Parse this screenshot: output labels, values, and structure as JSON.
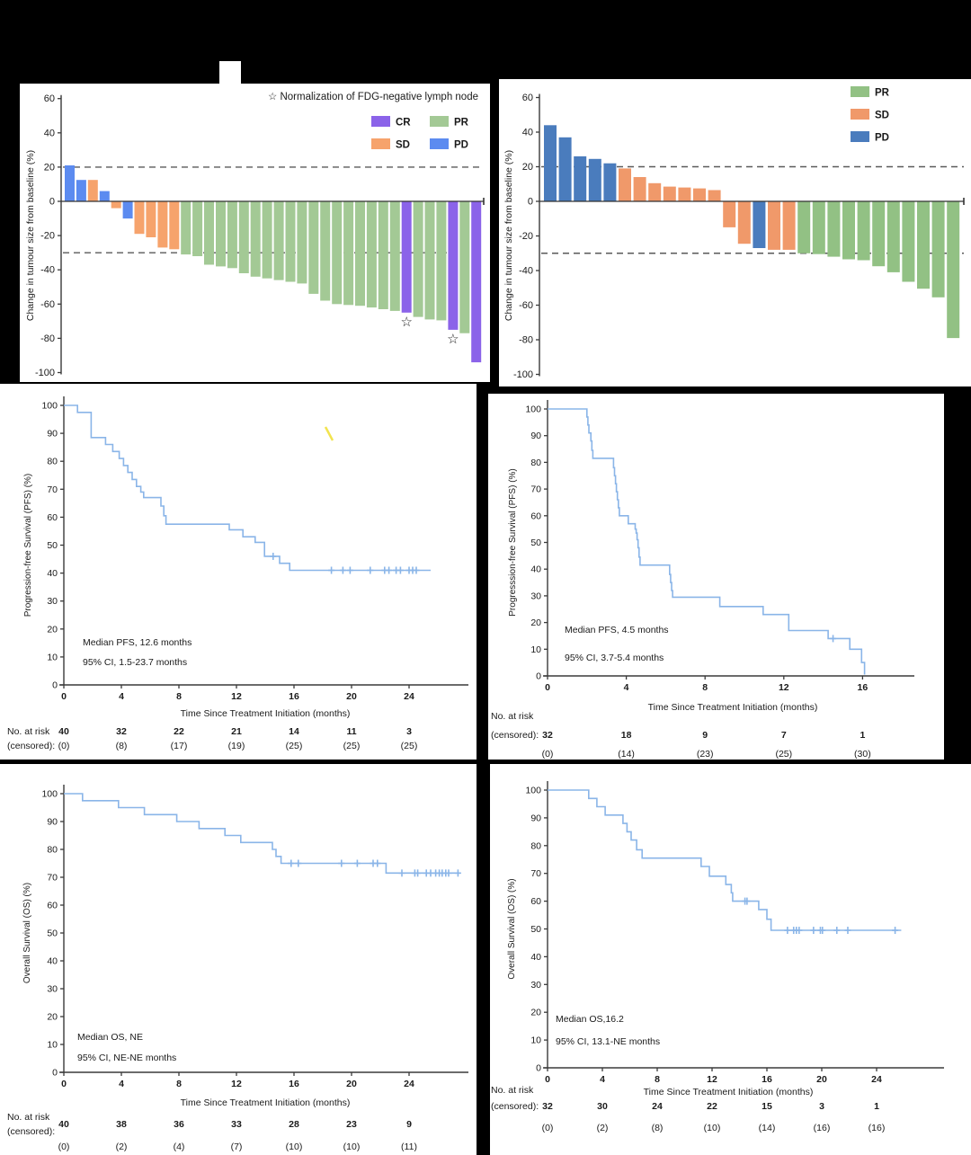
{
  "figure": {
    "risk_label_line1": "No. at risk",
    "risk_label_line2": "(censored):",
    "x_axis_label": "Time Since Treatment Initiation (months)",
    "km_line_color": "#8ab5e8",
    "axis_color": "#3a3a3a",
    "ref_line_color": "#5a5a5a",
    "star_symbol": "☆"
  },
  "chart_data": [
    {
      "id": "waterfall_arm1",
      "type": "bar",
      "ylabel": "Change in tumour size from baseline (%)",
      "yticks": [
        60,
        40,
        20,
        0,
        -20,
        -40,
        -60,
        -80,
        -100
      ],
      "ylim": [
        -100,
        60
      ],
      "ref_lines": [
        20,
        -30
      ],
      "legend_note": "Normalization of FDG-negative lymph node",
      "legend": [
        {
          "label": "CR",
          "color": "#8b63e9"
        },
        {
          "label": "PR",
          "color": "#a3c995"
        },
        {
          "label": "SD",
          "color": "#f6a36c"
        },
        {
          "label": "PD",
          "color": "#5c8bf0"
        }
      ],
      "colors": {
        "CR": "#8b63e9",
        "PR": "#a3c995",
        "SD": "#f6a36c",
        "PD": "#5c8bf0"
      },
      "values": [
        21,
        12.5,
        12.5,
        6,
        -4,
        -10,
        -19,
        -21,
        -27,
        -28,
        -31,
        -32,
        -37,
        -38,
        -39,
        -42,
        -44,
        -45,
        -46,
        -47,
        -48,
        -54,
        -58,
        -60,
        -60.5,
        -61,
        -62,
        -63,
        -64,
        -65,
        -67.5,
        -69,
        -69.5,
        -75,
        -77,
        -94
      ],
      "responses": [
        "PD",
        "PD",
        "SD",
        "PD",
        "SD",
        "PD",
        "SD",
        "SD",
        "SD",
        "SD",
        "PR",
        "PR",
        "PR",
        "PR",
        "PR",
        "PR",
        "PR",
        "PR",
        "PR",
        "PR",
        "PR",
        "PR",
        "PR",
        "PR",
        "PR",
        "PR",
        "PR",
        "PR",
        "PR",
        "CR",
        "PR",
        "PR",
        "PR",
        "CR",
        "PR",
        "CR"
      ],
      "starred_bars": [
        29,
        33
      ]
    },
    {
      "id": "waterfall_arm2",
      "type": "bar",
      "ylabel": "Change in tumour size from baseline (%)",
      "yticks": [
        60,
        40,
        20,
        0,
        -20,
        -40,
        -60,
        -80,
        -100
      ],
      "ylim": [
        -100,
        60
      ],
      "ref_lines": [
        20,
        -30
      ],
      "legend": [
        {
          "label": "PR",
          "color": "#92c184"
        },
        {
          "label": "SD",
          "color": "#f0996a"
        },
        {
          "label": "PD",
          "color": "#4a7cbd"
        }
      ],
      "colors": {
        "PR": "#92c184",
        "SD": "#f0996a",
        "PD": "#4a7cbd"
      },
      "values": [
        44,
        37,
        26,
        24.5,
        22,
        19,
        14,
        10.5,
        8.5,
        8,
        7.5,
        6.5,
        -15,
        -24.5,
        -27,
        -28,
        -28,
        -30,
        -30.5,
        -32,
        -33.5,
        -34,
        -37.5,
        -41,
        -46.5,
        -50.5,
        -55.5,
        -79
      ],
      "responses": [
        "PD",
        "PD",
        "PD",
        "PD",
        "PD",
        "SD",
        "SD",
        "SD",
        "SD",
        "SD",
        "SD",
        "SD",
        "SD",
        "SD",
        "PD",
        "SD",
        "SD",
        "PR",
        "PR",
        "PR",
        "PR",
        "PR",
        "PR",
        "PR",
        "PR",
        "PR",
        "PR",
        "PR"
      ],
      "starred_bars": []
    },
    {
      "id": "pfs_arm1",
      "type": "line",
      "ylabel": "Progression-free Survival (PFS) (%)",
      "xlabel": "Time Since Treatment Initiation (months)",
      "yticks": [
        100,
        90,
        80,
        70,
        60,
        50,
        40,
        30,
        20,
        10,
        0
      ],
      "xticks": [
        0,
        4,
        8,
        12,
        16,
        20,
        24
      ],
      "annotation_line1": "Median PFS, 12.6 months",
      "annotation_line2": "95% CI, 1.5-23.7 months",
      "steps": [
        [
          0,
          100
        ],
        [
          0.95,
          100
        ],
        [
          0.95,
          97.5
        ],
        [
          1.9,
          97.5
        ],
        [
          1.9,
          88.5
        ],
        [
          2.9,
          88.5
        ],
        [
          2.9,
          86
        ],
        [
          3.4,
          86
        ],
        [
          3.4,
          83.5
        ],
        [
          3.85,
          83.5
        ],
        [
          3.85,
          81
        ],
        [
          4.15,
          81
        ],
        [
          4.15,
          78.5
        ],
        [
          4.45,
          78.5
        ],
        [
          4.45,
          76
        ],
        [
          4.75,
          76
        ],
        [
          4.75,
          73.5
        ],
        [
          5.05,
          73.5
        ],
        [
          5.05,
          71
        ],
        [
          5.35,
          71
        ],
        [
          5.35,
          69
        ],
        [
          5.55,
          69
        ],
        [
          5.55,
          67
        ],
        [
          6.75,
          67
        ],
        [
          6.75,
          64
        ],
        [
          6.95,
          64
        ],
        [
          6.95,
          60.5
        ],
        [
          7.1,
          60.5
        ],
        [
          7.1,
          57.5
        ],
        [
          11.5,
          57.5
        ],
        [
          11.5,
          55.5
        ],
        [
          12.45,
          55.5
        ],
        [
          12.45,
          53
        ],
        [
          13.3,
          53
        ],
        [
          13.3,
          51
        ],
        [
          13.95,
          51
        ],
        [
          13.95,
          46
        ],
        [
          15.0,
          46
        ],
        [
          15.0,
          43.5
        ],
        [
          15.7,
          43.5
        ],
        [
          15.7,
          41
        ],
        [
          25.5,
          41
        ]
      ],
      "censor_marks": [
        [
          14.55,
          46
        ],
        [
          18.6,
          41
        ],
        [
          19.4,
          41
        ],
        [
          19.9,
          41
        ],
        [
          21.3,
          41
        ],
        [
          22.3,
          41
        ],
        [
          22.6,
          41
        ],
        [
          23.1,
          41
        ],
        [
          23.4,
          41
        ],
        [
          24.0,
          41
        ],
        [
          24.25,
          41
        ],
        [
          24.5,
          41
        ]
      ],
      "risk_months": [
        0,
        4,
        8,
        12,
        16,
        20,
        24
      ],
      "at_risk": [
        40,
        32,
        22,
        21,
        14,
        11,
        3
      ],
      "censored": [
        "(0)",
        "(8)",
        "(17)",
        "(19)",
        "(25)",
        "(25)",
        "(25)"
      ]
    },
    {
      "id": "pfs_arm2",
      "type": "line",
      "ylabel": "Progresssion-free Survival (PFS) (%)",
      "xlabel": "Time Since Treatment Initiation (months)",
      "yticks": [
        100,
        90,
        80,
        70,
        60,
        50,
        40,
        30,
        20,
        10,
        0
      ],
      "xticks": [
        0,
        4,
        8,
        12,
        16
      ],
      "annotation_line1": "Median PFS, 4.5 months",
      "annotation_line2": "95% CI, 3.7-5.4 months",
      "steps": [
        [
          0,
          100
        ],
        [
          2.0,
          100
        ],
        [
          2.0,
          97
        ],
        [
          2.05,
          97
        ],
        [
          2.05,
          94
        ],
        [
          2.1,
          94
        ],
        [
          2.1,
          91
        ],
        [
          2.2,
          91
        ],
        [
          2.2,
          88
        ],
        [
          2.25,
          88
        ],
        [
          2.25,
          84.5
        ],
        [
          2.3,
          84.5
        ],
        [
          2.3,
          81.5
        ],
        [
          3.35,
          81.5
        ],
        [
          3.35,
          78
        ],
        [
          3.4,
          78
        ],
        [
          3.4,
          75
        ],
        [
          3.45,
          75
        ],
        [
          3.45,
          72
        ],
        [
          3.5,
          72
        ],
        [
          3.5,
          69
        ],
        [
          3.55,
          69
        ],
        [
          3.55,
          66
        ],
        [
          3.6,
          66
        ],
        [
          3.6,
          63
        ],
        [
          3.65,
          63
        ],
        [
          3.65,
          60
        ],
        [
          4.1,
          60
        ],
        [
          4.1,
          57
        ],
        [
          4.45,
          57
        ],
        [
          4.45,
          55
        ],
        [
          4.5,
          55
        ],
        [
          4.5,
          53.5
        ],
        [
          4.55,
          53.5
        ],
        [
          4.55,
          51
        ],
        [
          4.6,
          51
        ],
        [
          4.6,
          48
        ],
        [
          4.65,
          48
        ],
        [
          4.65,
          44.5
        ],
        [
          4.7,
          44.5
        ],
        [
          4.7,
          41.5
        ],
        [
          6.2,
          41.5
        ],
        [
          6.2,
          38
        ],
        [
          6.25,
          38
        ],
        [
          6.25,
          35
        ],
        [
          6.3,
          35
        ],
        [
          6.3,
          32
        ],
        [
          6.35,
          32
        ],
        [
          6.35,
          29.5
        ],
        [
          8.75,
          29.5
        ],
        [
          8.75,
          26
        ],
        [
          10.95,
          26
        ],
        [
          10.95,
          23
        ],
        [
          12.25,
          23
        ],
        [
          12.25,
          17
        ],
        [
          14.25,
          17
        ],
        [
          14.25,
          14
        ],
        [
          15.35,
          14
        ],
        [
          15.35,
          10
        ],
        [
          15.95,
          10
        ],
        [
          15.95,
          5
        ],
        [
          16.1,
          5
        ],
        [
          16.1,
          0.5
        ]
      ],
      "censor_marks": [
        [
          14.5,
          14
        ]
      ],
      "risk_months": [
        0,
        4,
        8,
        12,
        16
      ],
      "at_risk": [
        32,
        18,
        9,
        7,
        1
      ],
      "censored": [
        "(0)",
        "(14)",
        "(23)",
        "(25)",
        "(30)"
      ]
    },
    {
      "id": "os_arm1",
      "type": "line",
      "ylabel": "Overall Survival (OS) (%)",
      "xlabel": "Time Since Treatment Initiation (months)",
      "yticks": [
        100,
        90,
        80,
        70,
        60,
        50,
        40,
        30,
        20,
        10,
        0
      ],
      "xticks": [
        0,
        4,
        8,
        12,
        16,
        20,
        24
      ],
      "annotation_line1": "Median OS, NE",
      "annotation_line2": "95% CI, NE-NE months",
      "steps": [
        [
          0,
          100
        ],
        [
          1.3,
          100
        ],
        [
          1.3,
          97.5
        ],
        [
          3.8,
          97.5
        ],
        [
          3.8,
          95
        ],
        [
          5.6,
          95
        ],
        [
          5.6,
          92.5
        ],
        [
          7.85,
          92.5
        ],
        [
          7.85,
          90
        ],
        [
          9.4,
          90
        ],
        [
          9.4,
          87.5
        ],
        [
          11.2,
          87.5
        ],
        [
          11.2,
          85
        ],
        [
          12.3,
          85
        ],
        [
          12.3,
          82.5
        ],
        [
          14.5,
          82.5
        ],
        [
          14.5,
          80
        ],
        [
          14.75,
          80
        ],
        [
          14.75,
          77.5
        ],
        [
          15.1,
          77.5
        ],
        [
          15.1,
          75
        ],
        [
          22.4,
          75
        ],
        [
          22.4,
          71.5
        ],
        [
          27.5,
          71.5
        ]
      ],
      "censor_marks": [
        [
          15.8,
          75
        ],
        [
          16.3,
          75
        ],
        [
          19.3,
          75
        ],
        [
          20.4,
          75
        ],
        [
          21.5,
          75
        ],
        [
          21.8,
          75
        ],
        [
          23.5,
          71.5
        ],
        [
          24.4,
          71.5
        ],
        [
          24.6,
          71.5
        ],
        [
          25.2,
          71.5
        ],
        [
          25.5,
          71.5
        ],
        [
          25.85,
          71.5
        ],
        [
          26.1,
          71.5
        ],
        [
          26.3,
          71.5
        ],
        [
          26.55,
          71.5
        ],
        [
          26.75,
          71.5
        ],
        [
          27.4,
          71.5
        ]
      ],
      "risk_months": [
        0,
        4,
        8,
        12,
        16,
        20,
        24
      ],
      "at_risk": [
        40,
        38,
        36,
        33,
        28,
        23,
        9
      ],
      "censored": [
        "(0)",
        "(2)",
        "(4)",
        "(7)",
        "(10)",
        "(10)",
        "(11)"
      ]
    },
    {
      "id": "os_arm2",
      "type": "line",
      "ylabel": "Overall Survival (OS) (%)",
      "xlabel": "Time Since Treatment Initiation (months)",
      "yticks": [
        100,
        90,
        80,
        70,
        60,
        50,
        40,
        30,
        20,
        10,
        0
      ],
      "xticks": [
        0,
        4,
        8,
        12,
        16,
        20,
        24
      ],
      "annotation_line1": "Median OS,16.2",
      "annotation_line2": "95% CI, 13.1-NE months",
      "steps": [
        [
          0,
          100
        ],
        [
          3.0,
          100
        ],
        [
          3.0,
          97
        ],
        [
          3.6,
          97
        ],
        [
          3.6,
          94
        ],
        [
          4.2,
          94
        ],
        [
          4.2,
          91
        ],
        [
          5.5,
          91
        ],
        [
          5.5,
          88
        ],
        [
          5.8,
          88
        ],
        [
          5.8,
          85
        ],
        [
          6.1,
          85
        ],
        [
          6.1,
          82
        ],
        [
          6.5,
          82
        ],
        [
          6.5,
          78.5
        ],
        [
          6.9,
          78.5
        ],
        [
          6.9,
          75.5
        ],
        [
          11.2,
          75.5
        ],
        [
          11.2,
          72.5
        ],
        [
          11.8,
          72.5
        ],
        [
          11.8,
          69
        ],
        [
          13.0,
          69
        ],
        [
          13.0,
          66
        ],
        [
          13.4,
          66
        ],
        [
          13.4,
          63
        ],
        [
          13.5,
          63
        ],
        [
          13.5,
          60
        ],
        [
          15.4,
          60
        ],
        [
          15.4,
          57
        ],
        [
          16.0,
          57
        ],
        [
          16.0,
          53.5
        ],
        [
          16.3,
          53.5
        ],
        [
          16.3,
          49.5
        ],
        [
          25.8,
          49.5
        ]
      ],
      "censor_marks": [
        [
          14.4,
          60
        ],
        [
          14.55,
          60
        ],
        [
          17.5,
          49.5
        ],
        [
          17.95,
          49.5
        ],
        [
          18.15,
          49.5
        ],
        [
          18.35,
          49.5
        ],
        [
          19.4,
          49.5
        ],
        [
          19.9,
          49.5
        ],
        [
          20.05,
          49.5
        ],
        [
          21.1,
          49.5
        ],
        [
          21.9,
          49.5
        ],
        [
          25.35,
          49.5
        ]
      ],
      "risk_months": [
        0,
        4,
        8,
        12,
        16,
        20,
        24
      ],
      "at_risk": [
        32,
        30,
        24,
        22,
        15,
        3,
        1
      ],
      "censored": [
        "(0)",
        "(2)",
        "(8)",
        "(10)",
        "(14)",
        "(16)",
        "(16)"
      ]
    }
  ]
}
